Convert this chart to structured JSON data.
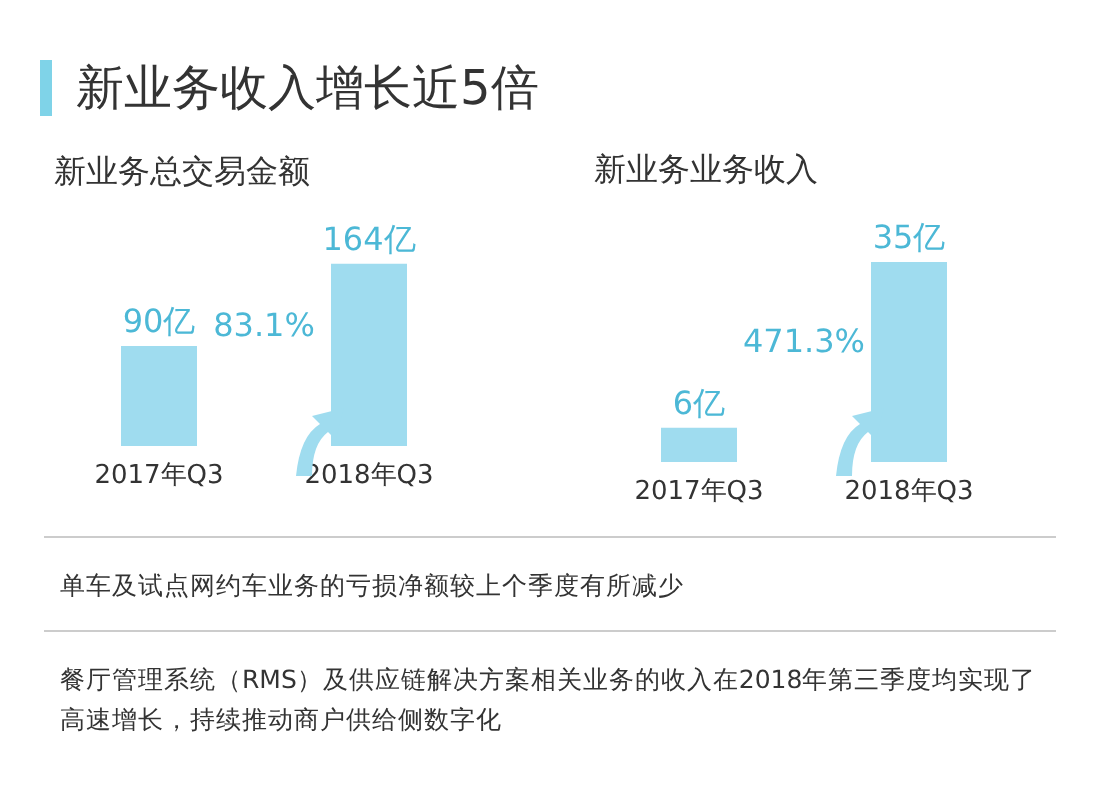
{
  "chart_data": [
    {
      "type": "other",
      "title": "新业务收入增长近5倍"
    },
    {
      "type": "bar",
      "title": "新业务总交易金额",
      "categories": [
        "2017年Q3",
        "2018年Q3"
      ],
      "values": [
        90,
        164
      ],
      "value_labels": [
        "90亿",
        "164亿"
      ],
      "color": "#9fdcef",
      "annotations": [
        "83.1%"
      ]
    },
    {
      "type": "bar",
      "title": "新业务业务收入",
      "categories": [
        "2017年Q3",
        "2018年Q3"
      ],
      "values": [
        6,
        35
      ],
      "value_labels": [
        "6亿",
        "35亿"
      ],
      "color": "#9fdcef",
      "annotations": [
        "471.3%"
      ]
    },
    {
      "type": "other",
      "annotations": [
        "单车及试点网约车业务的亏损净额较上个季度有所减少",
        "餐厅管理系统（RMS）及供应链解决方案相关业务的收入在2018年第三季度均实现了高速增长，持续推动商户供给侧数字化"
      ]
    }
  ]
}
